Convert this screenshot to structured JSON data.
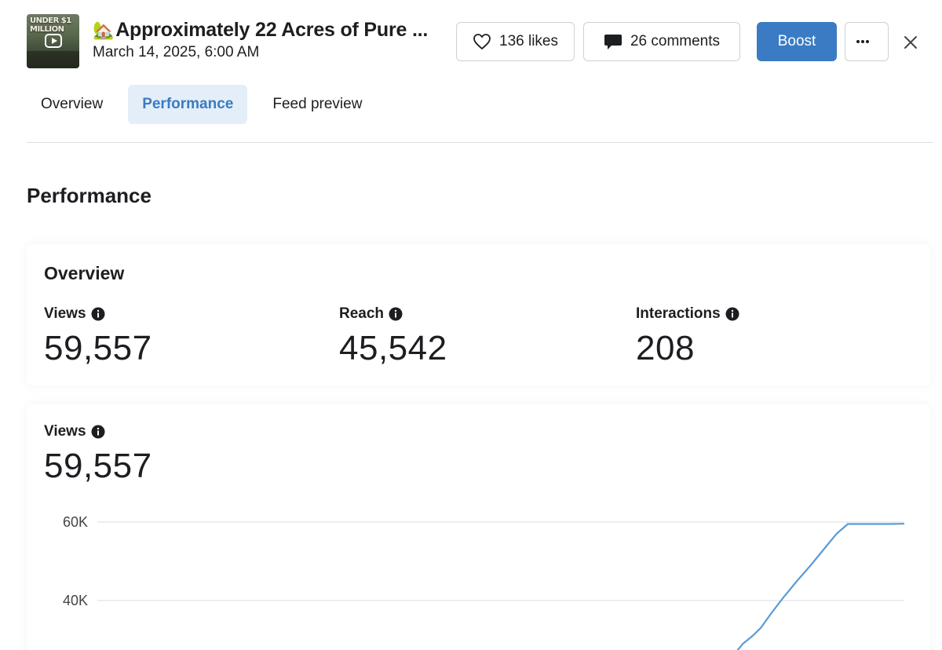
{
  "header": {
    "thumbnail_text": "UNDER $1 MILLION",
    "title_emoji": "🏡",
    "title": "Approximately 22 Acres of Pure ...",
    "date": "March 14, 2025, 6:00 AM",
    "likes_label": "136 likes",
    "comments_label": "26 comments",
    "boost_label": "Boost",
    "more_label": "···"
  },
  "tabs": [
    {
      "label": "Overview",
      "active": false
    },
    {
      "label": "Performance",
      "active": true
    },
    {
      "label": "Feed preview",
      "active": false
    }
  ],
  "section_title": "Performance",
  "overview": {
    "heading": "Overview",
    "metrics": [
      {
        "label": "Views",
        "value": "59,557"
      },
      {
        "label": "Reach",
        "value": "45,542"
      },
      {
        "label": "Interactions",
        "value": "208"
      }
    ]
  },
  "views_card": {
    "label": "Views",
    "value": "59,557"
  },
  "colors": {
    "accent": "#3a7bc4",
    "line": "#5b9bd5",
    "grid": "#d9dce0",
    "active_tab_bg": "#e4eef8"
  },
  "icons": [
    "heart-icon",
    "comment-icon",
    "more-icon",
    "close-icon",
    "info-icon"
  ],
  "chart_data": {
    "type": "line",
    "yticks": [
      "60K",
      "40K"
    ],
    "ylim": [
      20000,
      60000
    ],
    "y_tick_values": [
      60000,
      40000
    ],
    "series": [
      {
        "values": [
          26000,
          29000,
          31000,
          33000,
          37000,
          41000,
          45000,
          49000,
          53000,
          57000,
          59500,
          59500,
          59500,
          59557
        ]
      }
    ],
    "x_fraction": [
      0.788,
      0.8,
      0.812,
      0.822,
      0.836,
      0.851,
      0.867,
      0.884,
      0.9,
      0.916,
      0.93,
      0.95,
      0.98,
      1.0
    ]
  }
}
